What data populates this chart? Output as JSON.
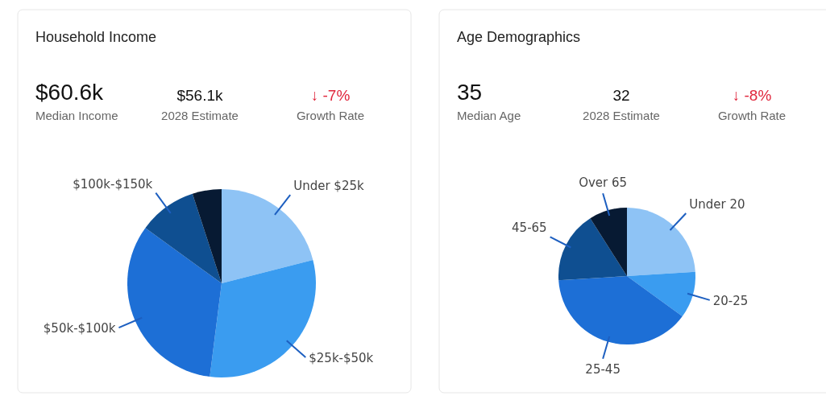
{
  "chart_data": [
    {
      "type": "pie",
      "title": "Household Income",
      "annotations": [
        "$60.6k",
        "Median Income",
        "$56.1k",
        "2028 Estimate",
        "↓ -7%",
        "Growth Rate"
      ],
      "categories": [
        "Under $25k",
        "$25k-$50k",
        "$50k-$100k",
        "$100k-$150k",
        null
      ],
      "values": [
        21,
        31,
        33,
        10,
        5
      ],
      "colors": [
        "#8ec3f5",
        "#3a9cf0",
        "#1d6fd6",
        "#0f4f91",
        "#071a33"
      ]
    },
    {
      "type": "pie",
      "title": "Age Demographics",
      "annotations": [
        "35",
        "Median Age",
        "32",
        "2028 Estimate",
        "↓ -8%",
        "Growth Rate"
      ],
      "categories": [
        "Under 20",
        "20-25",
        "25-45",
        "45-65",
        "Over 65"
      ],
      "values": [
        24,
        11,
        39,
        17,
        9
      ],
      "colors": [
        "#8ec3f5",
        "#3a9cf0",
        "#1d6fd6",
        "#0f4f91",
        "#071a33"
      ]
    }
  ]
}
